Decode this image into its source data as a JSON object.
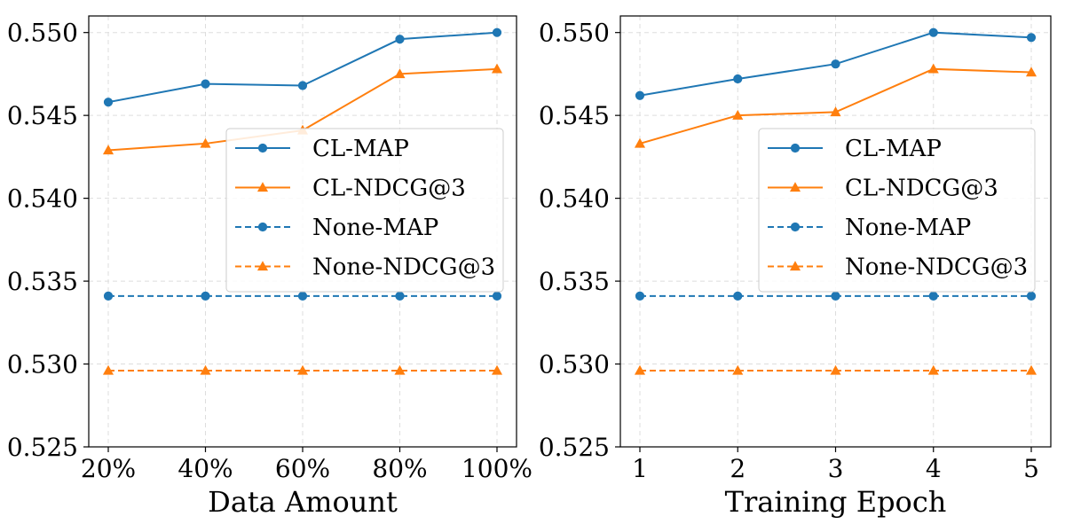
{
  "colors": {
    "cl_map": "#1f77b4",
    "cl_ndcg": "#ff7f0e",
    "none_map": "#1f77b4",
    "none_ndcg": "#ff7f0e",
    "grid": "#dddddd",
    "axis": "#000000"
  },
  "chart_data": [
    {
      "type": "line",
      "xlabel": "Data Amount",
      "ylabel": "",
      "categories": [
        "20%",
        "40%",
        "60%",
        "80%",
        "100%"
      ],
      "ylim": [
        0.525,
        0.551
      ],
      "yticks": [
        "0.525",
        "0.530",
        "0.535",
        "0.540",
        "0.545",
        "0.550"
      ],
      "ytick_values": [
        0.525,
        0.53,
        0.535,
        0.54,
        0.545,
        0.55
      ],
      "grid": true,
      "legend_position": "center-right",
      "series": [
        {
          "name": "CL-MAP",
          "values": [
            0.5458,
            0.5469,
            0.5468,
            0.5496,
            0.55
          ],
          "marker": "circle",
          "linestyle": "solid",
          "color": "#1f77b4"
        },
        {
          "name": "CL-NDCG@3",
          "values": [
            0.5429,
            0.5433,
            0.5441,
            0.5475,
            0.5478
          ],
          "marker": "triangle",
          "linestyle": "solid",
          "color": "#ff7f0e"
        },
        {
          "name": "None-MAP",
          "values": [
            0.5341,
            0.5341,
            0.5341,
            0.5341,
            0.5341
          ],
          "marker": "circle",
          "linestyle": "dashed",
          "color": "#1f77b4"
        },
        {
          "name": "None-NDCG@3",
          "values": [
            0.5296,
            0.5296,
            0.5296,
            0.5296,
            0.5296
          ],
          "marker": "triangle",
          "linestyle": "dashed",
          "color": "#ff7f0e"
        }
      ]
    },
    {
      "type": "line",
      "xlabel": "Training Epoch",
      "ylabel": "",
      "categories": [
        "1",
        "2",
        "3",
        "4",
        "5"
      ],
      "ylim": [
        0.525,
        0.551
      ],
      "yticks": [
        "0.525",
        "0.530",
        "0.535",
        "0.540",
        "0.545",
        "0.550"
      ],
      "ytick_values": [
        0.525,
        0.53,
        0.535,
        0.54,
        0.545,
        0.55
      ],
      "grid": true,
      "legend_position": "center-right",
      "series": [
        {
          "name": "CL-MAP",
          "values": [
            0.5462,
            0.5472,
            0.5481,
            0.55,
            0.5497
          ],
          "marker": "circle",
          "linestyle": "solid",
          "color": "#1f77b4"
        },
        {
          "name": "CL-NDCG@3",
          "values": [
            0.5433,
            0.545,
            0.5452,
            0.5478,
            0.5476
          ],
          "marker": "triangle",
          "linestyle": "solid",
          "color": "#ff7f0e"
        },
        {
          "name": "None-MAP",
          "values": [
            0.5341,
            0.5341,
            0.5341,
            0.5341,
            0.5341
          ],
          "marker": "circle",
          "linestyle": "dashed",
          "color": "#1f77b4"
        },
        {
          "name": "None-NDCG@3",
          "values": [
            0.5296,
            0.5296,
            0.5296,
            0.5296,
            0.5296
          ],
          "marker": "triangle",
          "linestyle": "dashed",
          "color": "#ff7f0e"
        }
      ]
    }
  ]
}
